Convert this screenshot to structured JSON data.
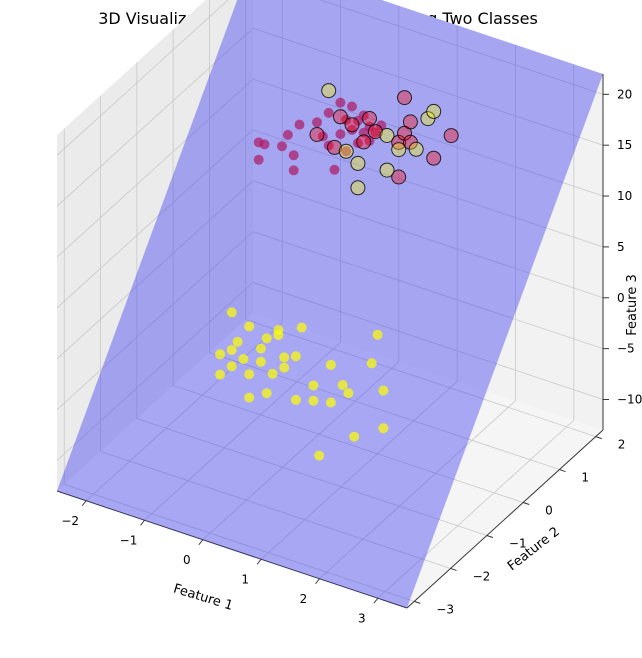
{
  "chart_data": {
    "type": "scatter",
    "projection": "3d",
    "title": "3D Visualization of Hyperplane Separating Two Classes",
    "xlabel": "Feature 1",
    "ylabel": "Feature 2",
    "zlabel": "Feature 3",
    "xlim": [
      -2.5,
      3.5
    ],
    "ylim": [
      -3.2,
      2.2
    ],
    "zlim": [
      -13,
      22
    ],
    "xticks": [
      -2,
      -1,
      0,
      1,
      2,
      3
    ],
    "yticks": [
      -3,
      -2,
      -1,
      0,
      1,
      2
    ],
    "zticks": [
      -10,
      -5,
      0,
      5,
      10,
      15,
      20
    ],
    "grid": true,
    "colors": {
      "class0": "#ff0000",
      "class1": "#ffff00",
      "plane": "#3b3bf0",
      "support_edge": "#000000"
    },
    "hyperplane": {
      "corners": [
        {
          "x": -2.5,
          "y": -3.2,
          "z": -13
        },
        {
          "x": 3.5,
          "y": -3.2,
          "z": -13
        },
        {
          "x": 3.5,
          "y": 2.2,
          "z": 22
        },
        {
          "x": -2.5,
          "y": 2.2,
          "z": 22
        }
      ]
    },
    "series": [
      {
        "class": 0,
        "color": "#ff0000",
        "points": [
          [
            -2.34,
            2.1,
            4.4
          ],
          [
            -2.24,
            2.1,
            4.4
          ],
          [
            -2.34,
            2.1,
            2.7
          ],
          [
            -1.94,
            2.1,
            4.8
          ],
          [
            -1.84,
            2.1,
            6.1
          ],
          [
            -1.74,
            2.1,
            4.3
          ],
          [
            -1.74,
            2.1,
            2.8
          ],
          [
            -1.34,
            2.1,
            8.3
          ],
          [
            -1.24,
            2.1,
            7.1
          ],
          [
            -1.14,
            2.1,
            6.4
          ],
          [
            -1.04,
            2.1,
            4.2
          ],
          [
            -0.84,
            2.1,
            9.5
          ],
          [
            -0.94,
            2.1,
            7.9
          ],
          [
            -0.74,
            2.1,
            8.7
          ],
          [
            -0.64,
            2.1,
            9.8
          ],
          [
            -0.54,
            2.1,
            8.8
          ],
          [
            -0.44,
            2.1,
            9.6
          ],
          [
            -0.34,
            2.1,
            9.2
          ],
          [
            -0.24,
            2.1,
            10.1
          ],
          [
            -1.64,
            2.1,
            7.5
          ],
          [
            -1.14,
            2.1,
            9.6
          ],
          [
            -0.94,
            2.1,
            11.0
          ],
          [
            -0.74,
            2.1,
            11.0
          ],
          [
            -0.54,
            2.1,
            10.5
          ],
          [
            -0.64,
            2.1,
            7.6
          ],
          [
            -0.84,
            2.1,
            6.4
          ],
          [
            -0.44,
            2.1,
            8.2
          ]
        ]
      },
      {
        "class": 1,
        "color": "#ffff00",
        "points": [
          [
            0.06,
            -2.5,
            3.5
          ],
          [
            0.26,
            -2.5,
            3.0
          ],
          [
            0.56,
            -2.5,
            3.3
          ],
          [
            0.56,
            -2.5,
            4.6
          ],
          [
            0.76,
            -2.5,
            2.5
          ],
          [
            0.96,
            -2.5,
            3.5
          ],
          [
            0.96,
            -2.5,
            4.5
          ],
          [
            0.36,
            -2.5,
            1.7
          ],
          [
            0.06,
            -2.5,
            1.9
          ],
          [
            -0.14,
            -2.5,
            2.7
          ],
          [
            -0.14,
            -2.5,
            0.7
          ],
          [
            0.36,
            -2.5,
            -0.6
          ],
          [
            0.66,
            -2.5,
            0.4
          ],
          [
            1.46,
            -2.5,
            1.2
          ],
          [
            1.46,
            -2.5,
            2.7
          ],
          [
            1.16,
            -2.5,
            0.7
          ],
          [
            0.16,
            -2.5,
            4.5
          ],
          [
            0.66,
            -2.5,
            5.8
          ],
          [
            1.16,
            -2.5,
            5.0
          ],
          [
            1.96,
            -2.5,
            3.7
          ],
          [
            2.06,
            -2.5,
            3.1
          ],
          [
            1.76,
            -2.5,
            5.3
          ],
          [
            1.76,
            -2.5,
            1.6
          ],
          [
            2.16,
            -2.5,
            -1.0
          ],
          [
            1.56,
            -2.5,
            -4.0
          ],
          [
            2.66,
            -2.5,
            0.8
          ],
          [
            2.66,
            -2.5,
            4.5
          ],
          [
            2.46,
            -2.5,
            6.8
          ],
          [
            2.56,
            -2.5,
            9.8
          ],
          [
            0.86,
            -2.5,
            6.5
          ],
          [
            0.36,
            -2.5,
            6.4
          ],
          [
            0.06,
            -2.5,
            7.2
          ],
          [
            1.26,
            -2.5,
            8.0
          ],
          [
            0.86,
            -2.5,
            7.0
          ]
        ]
      },
      {
        "name": "",
        "class": "support",
        "points": [
          [
            -1.14,
            2.1,
            11.8,
            1
          ],
          [
            -1.34,
            2.1,
            7.1,
            0
          ],
          [
            -1.04,
            2.1,
            6.4,
            0
          ],
          [
            -0.84,
            2.1,
            6.4,
            1
          ],
          [
            -0.54,
            2.1,
            7.9,
            0
          ],
          [
            -0.94,
            2.1,
            9.6,
            0
          ],
          [
            -0.74,
            2.1,
            9.2,
            0
          ],
          [
            -0.34,
            2.1,
            9.3,
            0
          ],
          [
            -0.14,
            2.1,
            9.3,
            1
          ],
          [
            0.06,
            2.1,
            9.0,
            0
          ],
          [
            0.16,
            2.1,
            10.1,
            0
          ],
          [
            0.06,
            2.1,
            8.3,
            1
          ],
          [
            -0.44,
            2.1,
            10.4,
            0
          ],
          [
            0.66,
            2.1,
            8.6,
            0
          ],
          [
            0.26,
            2.1,
            11.4,
            0
          ],
          [
            0.56,
            2.1,
            12.3,
            1
          ],
          [
            0.66,
            2.1,
            13.2,
            1
          ],
          [
            0.16,
            2.1,
            13.6,
            0
          ],
          [
            0.96,
            2.1,
            11.4,
            0
          ],
          [
            -0.64,
            2.1,
            5.6,
            1
          ],
          [
            0.06,
            2.1,
            5.6,
            0
          ],
          [
            -0.14,
            2.1,
            5.9,
            1
          ],
          [
            -0.64,
            2.1,
            3.2,
            1
          ],
          [
            0.26,
            2.1,
            9.4,
            0
          ],
          [
            0.36,
            2.1,
            8.9,
            1
          ]
        ]
      }
    ]
  }
}
